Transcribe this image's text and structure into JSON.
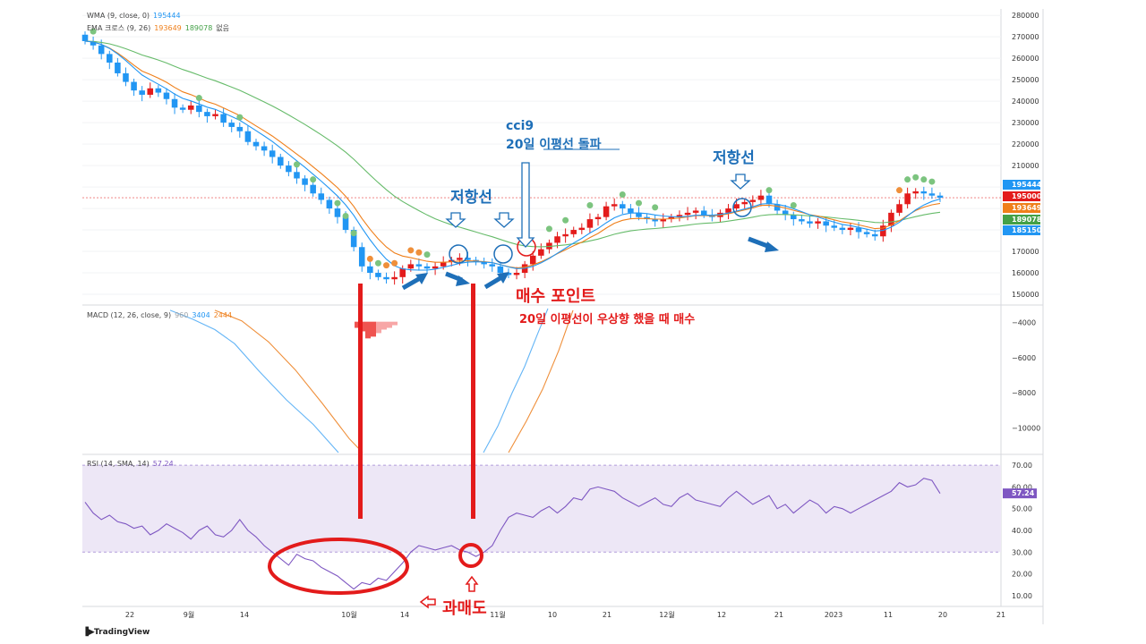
{
  "legends": {
    "wma": {
      "label": "WMA (9, close, 0)",
      "value": "195444"
    },
    "ema": {
      "label": "EMA 크로스 (9, 26)",
      "v1": "193649",
      "v2": "189078",
      "v3": "없음"
    },
    "macd": {
      "label": "MACD (12, 26, close, 9)",
      "v1": "960",
      "v2": "3404",
      "v3": "2444"
    },
    "rsi": {
      "label": "RSI (14, SMA, 14)",
      "v1": "57.24"
    }
  },
  "annotations": {
    "resist1": "저항선",
    "resist2": "저항선",
    "cci9": "cci9",
    "ma20_prefix": "20일 ",
    "ma20_break": "이평선 돌파",
    "buy_point": "매수 포인트",
    "buy_desc": "20일 이평선이 우상향 했을 때 매수",
    "oversold": "과매도"
  },
  "watermark": "TradingView",
  "colors": {
    "up": "#e31b1b",
    "down": "#2196f3",
    "wma": "#2196f3",
    "ema_fast": "#ef7f1a",
    "ema_slow": "#66bb6a",
    "rsi_line": "#7e57c2",
    "rsi_band": "#ede7f6",
    "annotation_red": "#e31b1b",
    "annotation_blue": "#1e6fb8"
  },
  "chart_data": [
    {
      "type": "candlestick",
      "panel": "price",
      "ylim": [
        145000,
        283000
      ],
      "yticks": [
        150000,
        160000,
        170000,
        180000,
        190000,
        200000,
        210000,
        220000,
        230000,
        240000,
        250000,
        260000,
        270000,
        280000
      ],
      "series": [
        {
          "name": "WMA (9, close, 0)",
          "last": 195444
        },
        {
          "name": "EMA 9",
          "last": 193649
        },
        {
          "name": "EMA 26",
          "last": 189078
        }
      ],
      "price_labels": [
        {
          "value": "195444",
          "color": "#2196f3"
        },
        {
          "value": "195000",
          "color": "#e31b1b"
        },
        {
          "value": "193649",
          "color": "#ef7f1a"
        },
        {
          "value": "189078",
          "color": "#43a047"
        },
        {
          "value": "185150",
          "color": "#2196f3"
        }
      ],
      "close": [
        268000,
        266000,
        262000,
        258000,
        253000,
        249000,
        245000,
        243000,
        246000,
        244000,
        241000,
        237000,
        236000,
        238000,
        235000,
        233000,
        234000,
        230000,
        228000,
        226000,
        221000,
        219000,
        217000,
        214000,
        210000,
        207000,
        204000,
        201000,
        197000,
        194000,
        190000,
        186000,
        180000,
        172000,
        163000,
        160000,
        158000,
        157000,
        158000,
        162000,
        164000,
        163000,
        162000,
        163000,
        165000,
        166000,
        167000,
        166000,
        165000,
        164000,
        163000,
        160000,
        159000,
        160000,
        164000,
        168000,
        171000,
        174000,
        177000,
        178000,
        180000,
        181000,
        185000,
        186000,
        191000,
        192000,
        190000,
        188000,
        186000,
        185000,
        184000,
        185000,
        186000,
        187000,
        188000,
        189000,
        187000,
        186000,
        188000,
        190000,
        192000,
        193000,
        194000,
        196000,
        192000,
        189000,
        187000,
        185000,
        184000,
        183000,
        184000,
        182000,
        181000,
        180000,
        181000,
        179000,
        178000,
        177000,
        182000,
        188000,
        192000,
        197000,
        198000,
        197000,
        196000,
        195000
      ],
      "x_ticks": [
        "22",
        "9월",
        "14",
        "10월",
        "14",
        "11월",
        "10",
        "21",
        "12월",
        "12",
        "21",
        "2023",
        "11",
        "20",
        "21"
      ]
    },
    {
      "type": "line",
      "panel": "macd",
      "ylim": [
        -11500,
        -3000
      ],
      "yticks": [
        -4000,
        -6000,
        -8000,
        -10000
      ],
      "series": [
        {
          "name": "MACD",
          "last": 960
        },
        {
          "name": "Signal",
          "last": 3404
        },
        {
          "name": "Histogram",
          "last": 2444
        }
      ]
    },
    {
      "type": "line",
      "panel": "rsi",
      "ylim": [
        5,
        75
      ],
      "yticks": [
        10,
        20,
        30,
        40,
        50,
        60,
        70
      ],
      "ytick_labels": [
        "10.00",
        "20.00",
        "30.00",
        "40.00",
        "50.00",
        "60.00",
        "70.00"
      ],
      "band": [
        30,
        70
      ],
      "series": [
        {
          "name": "RSI",
          "last": 57.24,
          "values": [
            53,
            48,
            45,
            47,
            44,
            43,
            41,
            42,
            38,
            40,
            43,
            41,
            39,
            36,
            40,
            42,
            38,
            37,
            40,
            45,
            40,
            37,
            33,
            30,
            27,
            24,
            29,
            27,
            26,
            23,
            21,
            19,
            16,
            13,
            16,
            15,
            18,
            17,
            21,
            25,
            30,
            33,
            32,
            31,
            32,
            33,
            31,
            30,
            28,
            30,
            33,
            40,
            46,
            48,
            47,
            46,
            49,
            51,
            48,
            51,
            55,
            54,
            59,
            60,
            59,
            58,
            55,
            53,
            51,
            53,
            55,
            52,
            51,
            55,
            57,
            54,
            53,
            52,
            51,
            55,
            58,
            55,
            52,
            54,
            56,
            50,
            52,
            48,
            51,
            54,
            52,
            48,
            51,
            50,
            48,
            50,
            52,
            54,
            56,
            58,
            62,
            60,
            61,
            64,
            63,
            57
          ]
        }
      ]
    }
  ]
}
